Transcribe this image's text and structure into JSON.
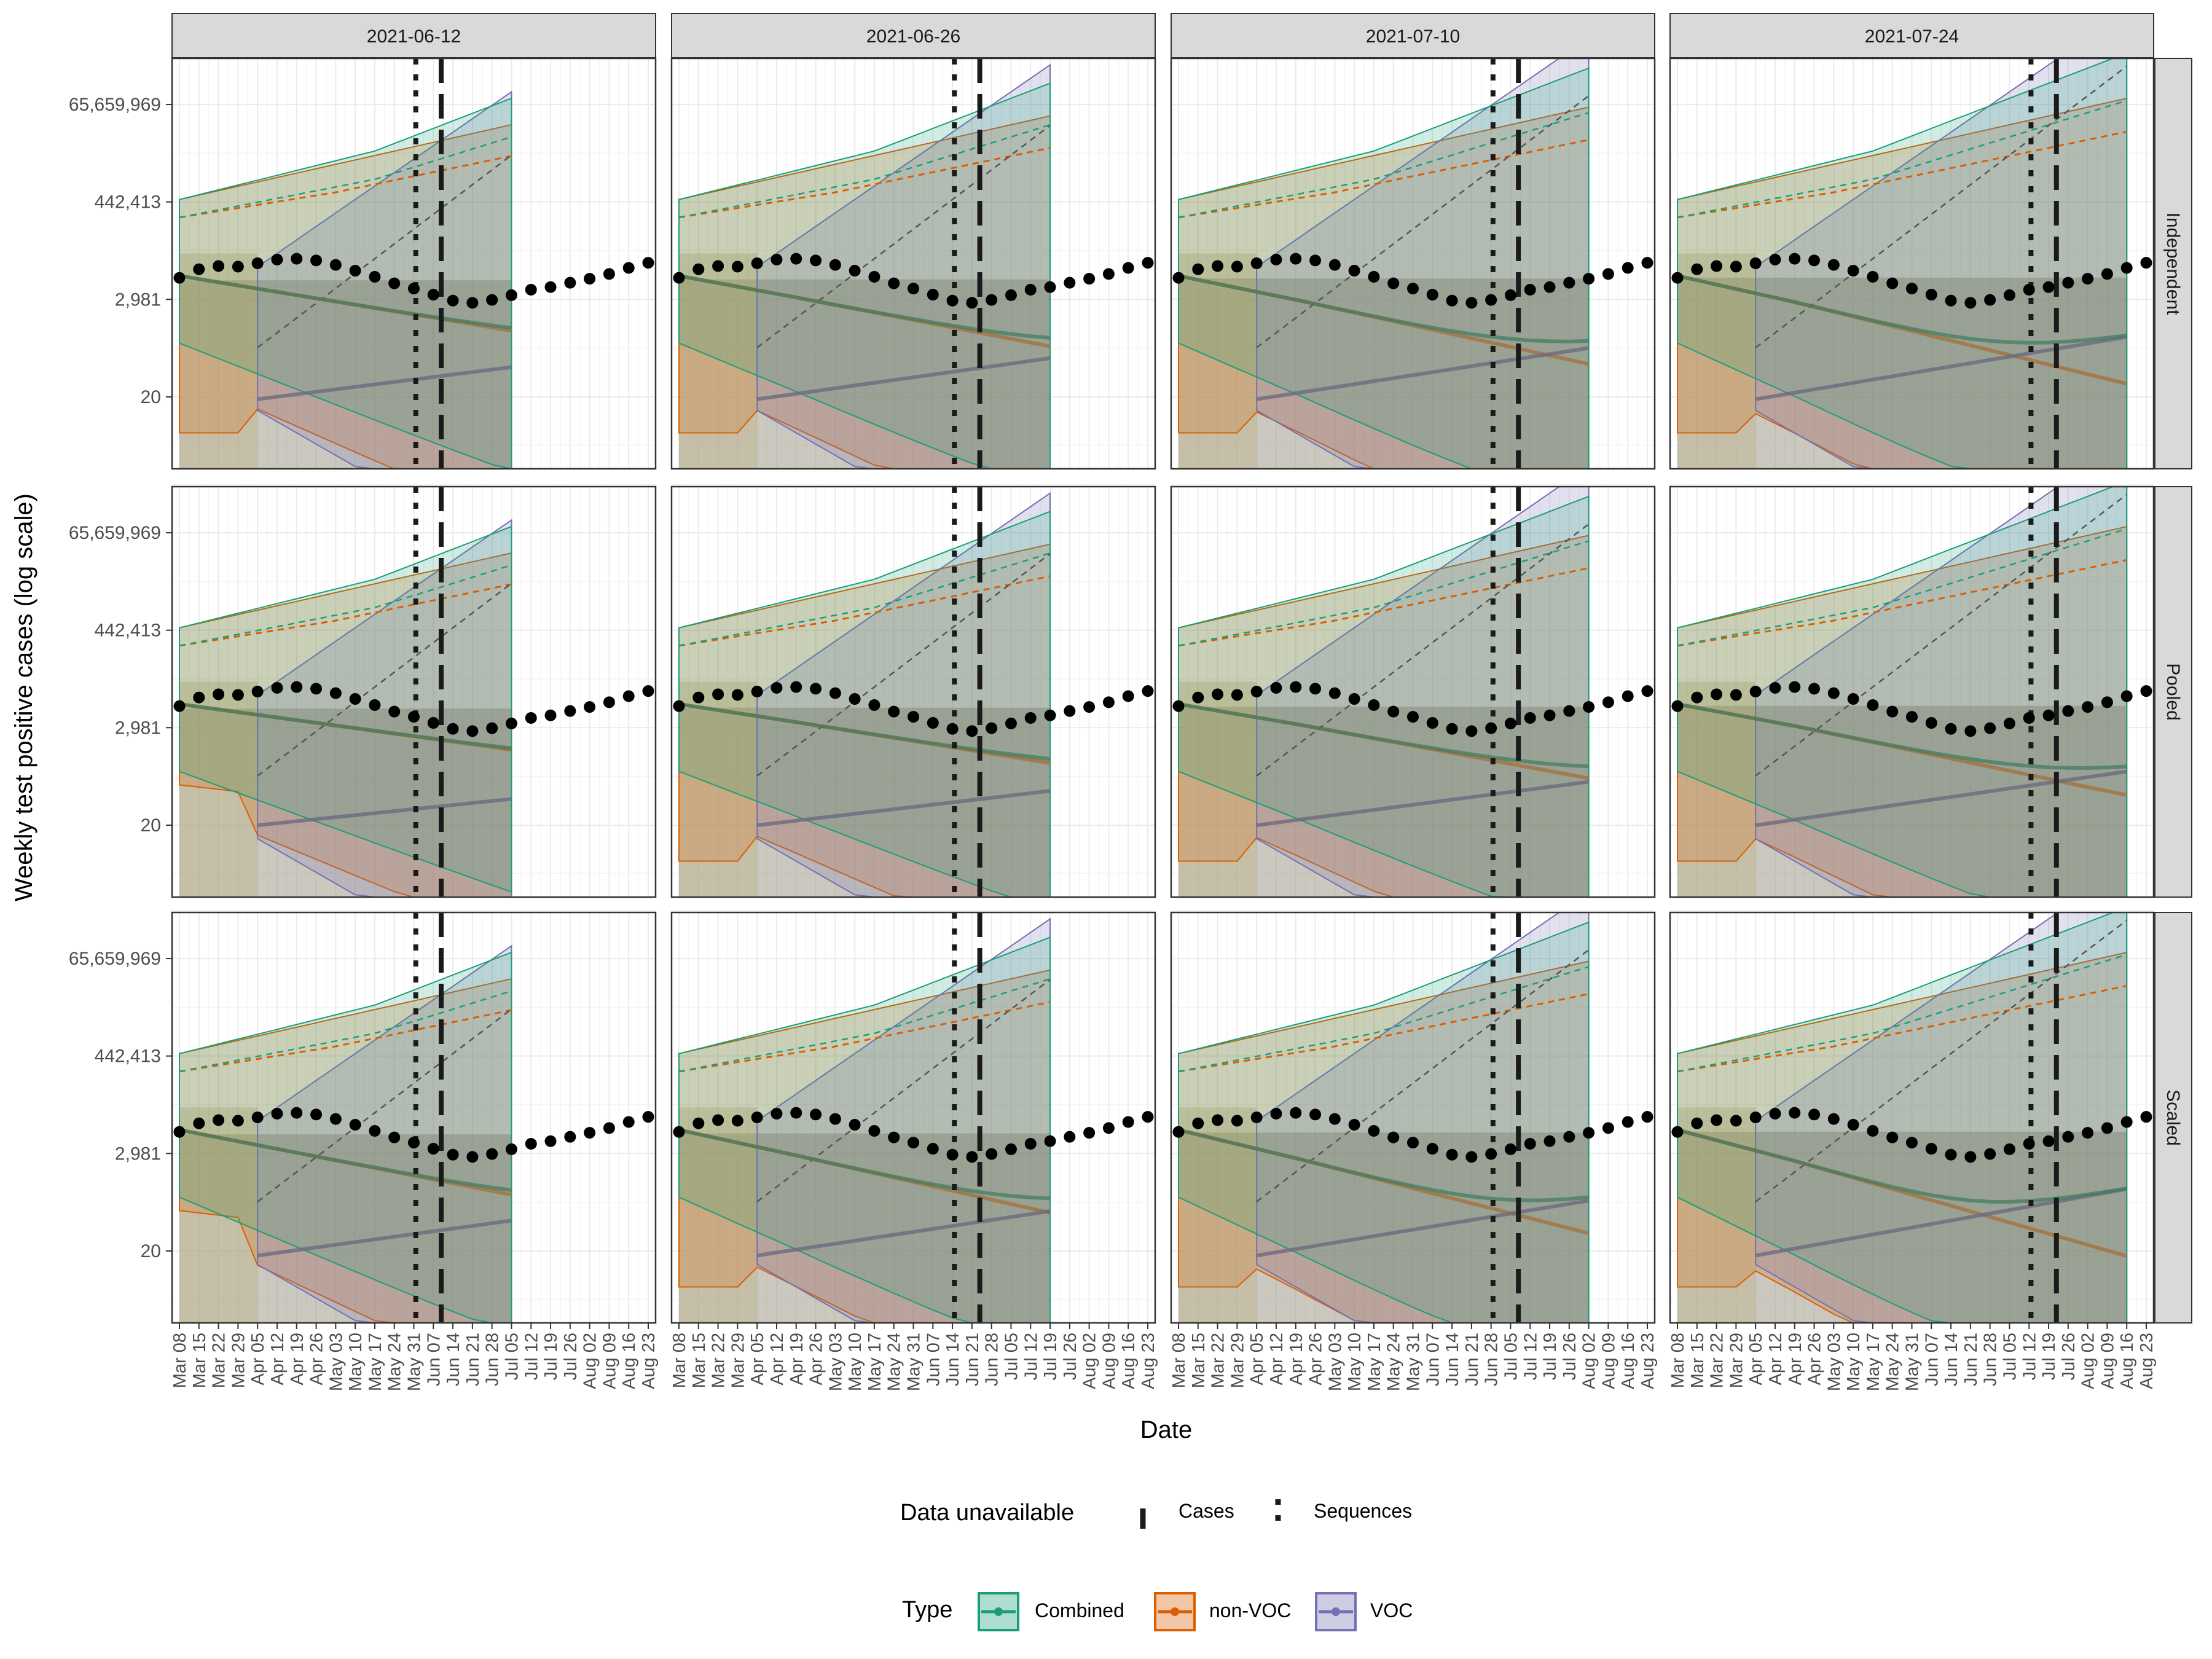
{
  "chart_data": {
    "type": "line",
    "ylabel": "Weekly test positive cases (log scale)",
    "xlabel": "Date",
    "y_scale": "log",
    "y_ticks": [
      20,
      2981,
      442413,
      65659969
    ],
    "y_tick_labels": [
      "20",
      "2,981",
      "442,413",
      "65,659,969"
    ],
    "y_range": [
      0.5,
      700000000
    ],
    "x_tick_labels": [
      "Mar 08",
      "Mar 15",
      "Mar 22",
      "Mar 29",
      "Apr 05",
      "Apr 12",
      "Apr 19",
      "Apr 26",
      "May 03",
      "May 10",
      "May 17",
      "May 24",
      "May 31",
      "Jun 07",
      "Jun 14",
      "Jun 21",
      "Jun 28",
      "Jul 05",
      "Jul 12",
      "Jul 19",
      "Jul 26",
      "Aug 02",
      "Aug 09",
      "Aug 16",
      "Aug 23"
    ],
    "x_tick_labels_by_column": [
      [
        "Mar 08",
        "Mar 15",
        "Mar 22",
        "Mar 29",
        "Apr 05",
        "Apr 12",
        "Apr 19",
        "Apr 26",
        "May 03",
        "May 10",
        "May 17",
        "May 24",
        "May 31",
        "Jun 07",
        "Jun 14",
        "Jun 21",
        "Jun 28",
        "Jul 05",
        "Jul 12",
        "Jul 19",
        "Jul 26",
        "Aug 02",
        "Aug 09",
        "Aug 16",
        "Aug 23"
      ],
      [
        "Mar 08",
        "Mar 15",
        "Mar 22",
        "Mar 29",
        "Apr 05",
        "Apr 12",
        "Apr 19",
        "Apr 26",
        "May 03",
        "May 10",
        "May 17",
        "May 24",
        "May 31",
        "Jun 07",
        "Jun 14",
        "Jun 21",
        "Jun 28",
        "Jul 05",
        "Jul 12",
        "Jul 19",
        "Jul 26",
        "Aug 02",
        "Aug 09",
        "Aug 16",
        "Aug 23"
      ],
      [
        "Mar 08",
        "Mar 15",
        "Mar 22",
        "Mar 29",
        "Apr 05",
        "Apr 12",
        "Apr 19",
        "Apr 26",
        "May 03",
        "May 10",
        "May 17",
        "May 24",
        "May 31",
        "Jun 07",
        "Jun 14",
        "Jun 21",
        "Jun 28",
        "Jul 05",
        "Jul 12",
        "Jul 19",
        "Jul 26",
        "Aug 02",
        "Aug 09",
        "Aug 16",
        "Aug 23"
      ],
      [
        "Mar 08",
        "Mar 15",
        "Mar 22",
        "Mar 29",
        "Apr 05",
        "Apr 12",
        "Apr 19",
        "Apr 26",
        "May 03",
        "May 10",
        "May 17",
        "May 24",
        "May 31",
        "Jun 07",
        "Jun 14",
        "Jun 21",
        "Jun 28",
        "Jul 05",
        "Jul 12",
        "Jul 19",
        "Jul 26",
        "Aug 02",
        "Aug 09",
        "Aug 16",
        "Aug 23"
      ]
    ],
    "x_week_count": 25,
    "facet_columns": [
      {
        "label": "2021-06-12",
        "sequences_unavailable_week": 12.1,
        "cases_unavailable_week": 13.4,
        "forecast_end_week": 17
      },
      {
        "label": "2021-06-26",
        "sequences_unavailable_week": 14.1,
        "cases_unavailable_week": 15.4,
        "forecast_end_week": 19
      },
      {
        "label": "2021-07-10",
        "sequences_unavailable_week": 16.1,
        "cases_unavailable_week": 17.4,
        "forecast_end_week": 21
      },
      {
        "label": "2021-07-24",
        "sequences_unavailable_week": 18.1,
        "cases_unavailable_week": 19.4,
        "forecast_end_week": 23
      }
    ],
    "facet_rows": [
      "Independent",
      "Pooled",
      "Scaled"
    ],
    "observed_cases": [
      9000,
      14000,
      16500,
      16000,
      19000,
      23000,
      24000,
      22000,
      17500,
      13000,
      9500,
      6800,
      5200,
      3800,
      2800,
      2500,
      2900,
      3700,
      4900,
      5600,
      7000,
      8600,
      11000,
      15000,
      19500
    ],
    "series_colors": {
      "Combined": "#1b9e77",
      "non-VOC": "#d95f02",
      "VOC": "#7570b3"
    },
    "unavailable_shade_color": "#a09a8a",
    "legend": {
      "data_unavailable": {
        "title": "Data unavailable",
        "items": [
          "Cases",
          "Sequences"
        ]
      },
      "type": {
        "title": "Type",
        "items": [
          "Combined",
          "non-VOC",
          "VOC"
        ]
      }
    }
  }
}
